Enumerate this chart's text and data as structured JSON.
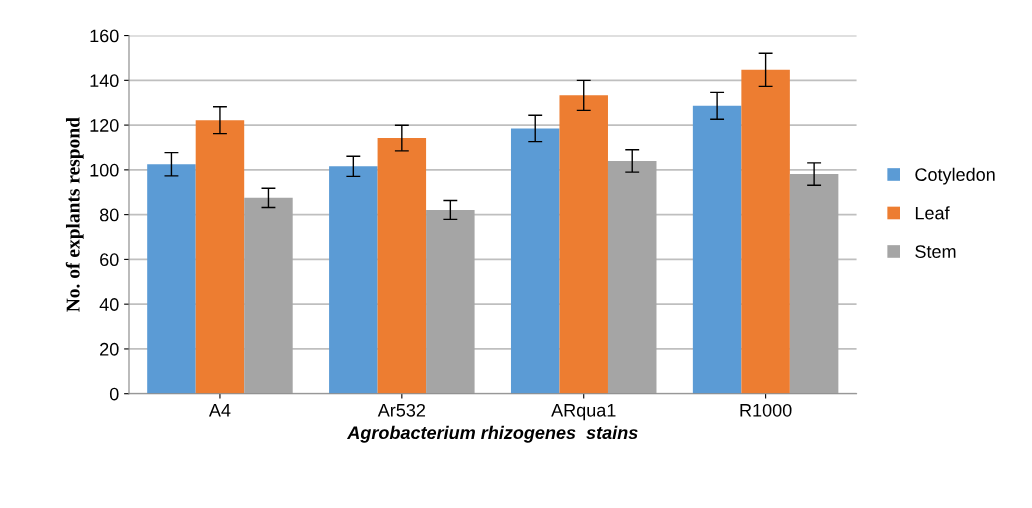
{
  "chart_data": {
    "type": "bar",
    "xlabel": "Agrobacterium rhizogenes  stains",
    "ylabel": "No. of explants respond",
    "categories": [
      "A4",
      "Ar532",
      "ARqua1",
      "R1000"
    ],
    "series": [
      {
        "name": "Cotyledon",
        "color": "#5b9bd5",
        "values": [
          102.5,
          101.6,
          118.5,
          128.6
        ],
        "errors": [
          5.2,
          4.5,
          5.9,
          6
        ]
      },
      {
        "name": "Leaf",
        "color": "#ed7d31",
        "values": [
          122.2,
          114.2,
          133.3,
          144.7
        ],
        "errors": [
          6,
          5.7,
          6.7,
          7.4
        ]
      },
      {
        "name": "Stem",
        "color": "#a5a5a5",
        "values": [
          87.5,
          82.1,
          104,
          98.1
        ],
        "errors": [
          4.3,
          4.2,
          5,
          5
        ]
      }
    ],
    "ylim": [
      0,
      160
    ],
    "yticks": [
      0,
      20,
      40,
      60,
      80,
      100,
      120,
      140,
      160
    ],
    "grid": "y",
    "legend": "right"
  }
}
